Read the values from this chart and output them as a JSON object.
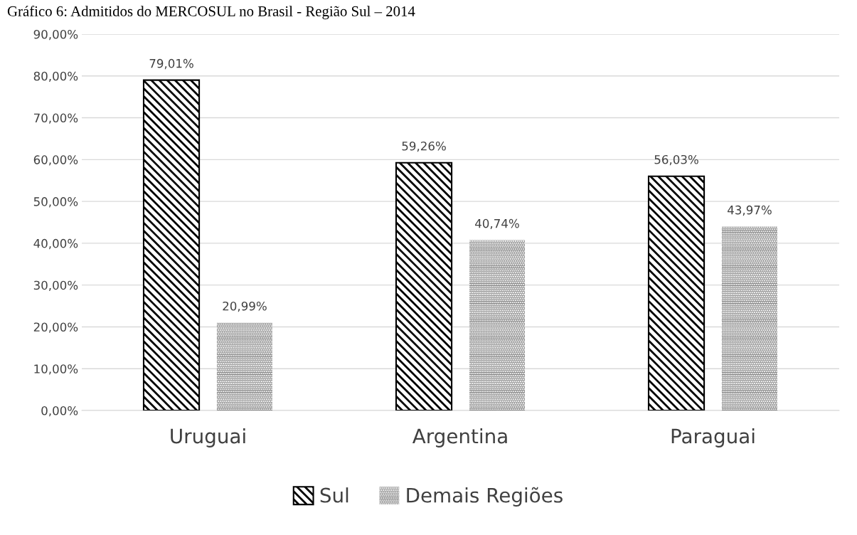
{
  "chart_data": {
    "type": "bar",
    "title": "Gráfico 6: Admitidos do MERCOSUL no Brasil - Região Sul – 2014",
    "categories": [
      "Uruguai",
      "Argentina",
      "Paraguai"
    ],
    "series": [
      {
        "name": "Sul",
        "color": "#000000",
        "values": [
          79.01,
          59.26,
          56.03
        ],
        "value_labels": [
          "79,01%",
          "59,26%",
          "56,03%"
        ]
      },
      {
        "name": "Demais Regiões",
        "color": "#808080",
        "values": [
          20.99,
          40.74,
          43.97
        ],
        "value_labels": [
          "20,99%",
          "40,74%",
          "43,97%"
        ]
      }
    ],
    "ylim": [
      0,
      90
    ],
    "yticks": [
      {
        "value": 0,
        "label": "0,00%"
      },
      {
        "value": 10,
        "label": "10,00%"
      },
      {
        "value": 20,
        "label": "20,00%"
      },
      {
        "value": 30,
        "label": "30,00%"
      },
      {
        "value": 40,
        "label": "40,00%"
      },
      {
        "value": 50,
        "label": "50,00%"
      },
      {
        "value": 60,
        "label": "60,00%"
      },
      {
        "value": 70,
        "label": "70,00%"
      },
      {
        "value": 80,
        "label": "80,00%"
      },
      {
        "value": 90,
        "label": "90,00%"
      }
    ],
    "grid": "y",
    "legend": "bottom"
  }
}
